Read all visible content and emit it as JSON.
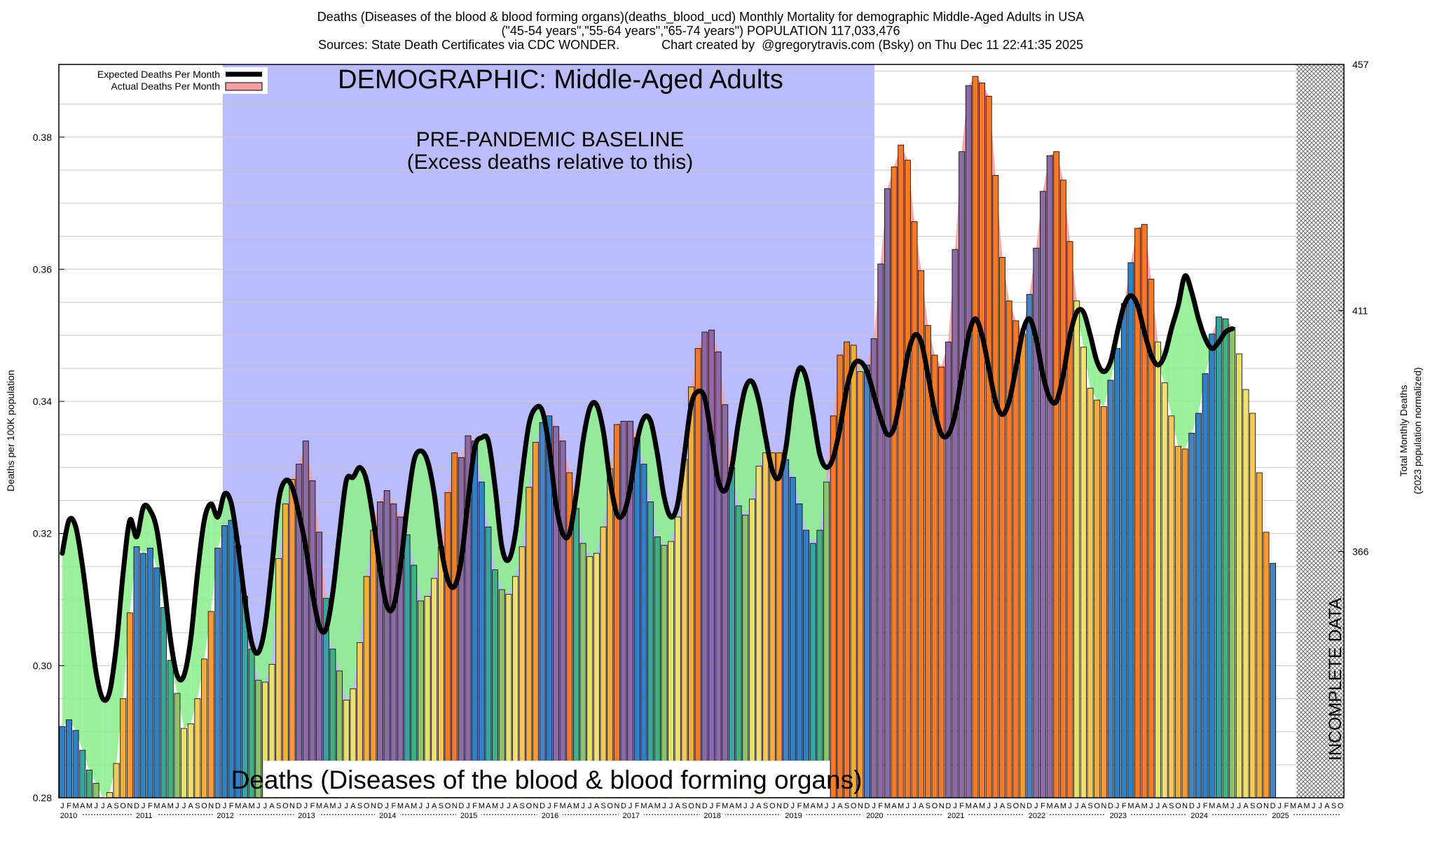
{
  "header": {
    "line1": "Deaths (Diseases of the blood & blood forming organs)(deaths_blood_ucd) Monthly Mortality for demographic Middle-Aged Adults in USA",
    "line2": "(\"45-54 years\",\"55-64 years\",\"65-74 years\") POPULATION 117,033,476",
    "line3": "Sources: State Death Certificates via CDC WONDER.            Chart created by  @gregorytravis.com (Bsky) on Thu Dec 11 22:41:35 2025"
  },
  "legend": {
    "expected": "Expected Deaths Per Month",
    "actual": "Actual Deaths Per Month"
  },
  "annotations": {
    "demographic": "DEMOGRAPHIC: Middle-Aged Adults",
    "baseline_line1": "PRE-PANDEMIC BASELINE",
    "baseline_line2": "(Excess deaths relative to this)",
    "bottom_label": "Deaths (Diseases of the blood & blood forming organs)",
    "incomplete": "INCOMPLETE DATA"
  },
  "colors": {
    "baseline_region": "#bbbbff",
    "expected_line": "#000000",
    "excess_fill": "#f4a0a0",
    "deficit_fill": "#90ee90",
    "incomplete_hatch": "#555555"
  },
  "chart_data": {
    "type": "bar",
    "ylabel": "Deaths per 100K population",
    "y2label_line1": "Total Monthly Deaths",
    "y2label_line2": "(2023 population normalized)",
    "ylim": [
      0.28,
      0.391
    ],
    "y2lim": [
      320,
      457
    ],
    "yticks": [
      "0.28",
      "0.30",
      "0.32",
      "0.34",
      "0.36",
      "0.38"
    ],
    "y2ticks": [
      "366",
      "411",
      "457"
    ],
    "grid": true,
    "legend_position": "top-left",
    "baseline_period": [
      "2012-01",
      "2019-12"
    ],
    "incomplete_from": "2025-04",
    "month_letters": [
      "J",
      "F",
      "M",
      "A",
      "M",
      "J",
      "J",
      "A",
      "S",
      "O",
      "N",
      "D"
    ],
    "years": [
      "2010",
      "2011",
      "2012",
      "2013",
      "2014",
      "2015",
      "2016",
      "2017",
      "2018",
      "2019",
      "2020",
      "2021",
      "2022",
      "2023",
      "2024",
      "2025"
    ],
    "series": [
      {
        "name": "Actual Deaths Per Month",
        "start": "2010-01",
        "values": [
          0.2908,
          0.2918,
          0.2902,
          0.2872,
          0.2842,
          0.2822,
          0.28,
          0.2808,
          0.2852,
          0.295,
          0.308,
          0.318,
          0.317,
          0.3178,
          0.3148,
          0.3088,
          0.3008,
          0.2958,
          0.2905,
          0.2912,
          0.295,
          0.301,
          0.3082,
          0.3178,
          0.3212,
          0.322,
          0.3182,
          0.3105,
          0.3025,
          0.2978,
          0.2975,
          0.3002,
          0.3162,
          0.3245,
          0.3282,
          0.3305,
          0.334,
          0.328,
          0.3202,
          0.3102,
          0.3025,
          0.2992,
          0.2948,
          0.2965,
          0.3035,
          0.3135,
          0.3205,
          0.3248,
          0.3265,
          0.3245,
          0.3225,
          0.3198,
          0.3152,
          0.3098,
          0.3105,
          0.3132,
          0.318,
          0.3262,
          0.3322,
          0.3315,
          0.3348,
          0.334,
          0.3278,
          0.321,
          0.3145,
          0.3115,
          0.3108,
          0.3135,
          0.318,
          0.327,
          0.3338,
          0.3368,
          0.3378,
          0.3362,
          0.334,
          0.3292,
          0.3238,
          0.3185,
          0.3165,
          0.317,
          0.321,
          0.3298,
          0.3365,
          0.337,
          0.337,
          0.3345,
          0.3305,
          0.3248,
          0.3195,
          0.3182,
          0.3188,
          0.3225,
          0.3312,
          0.3422,
          0.348,
          0.3505,
          0.3508,
          0.3475,
          0.3395,
          0.33,
          0.3242,
          0.3228,
          0.3252,
          0.3302,
          0.3322,
          0.3322,
          0.3322,
          0.3312,
          0.3285,
          0.3245,
          0.3205,
          0.3185,
          0.3205,
          0.3278,
          0.3378,
          0.347,
          0.349,
          0.3485,
          0.3445,
          0.3455,
          0.3495,
          0.3608,
          0.3722,
          0.3755,
          0.3788,
          0.3765,
          0.3672,
          0.3598,
          0.3515,
          0.347,
          0.3452,
          0.349,
          0.363,
          0.3778,
          0.3878,
          0.3892,
          0.3882,
          0.3862,
          0.3742,
          0.3618,
          0.3552,
          0.3522,
          0.3502,
          0.3562,
          0.3632,
          0.3718,
          0.3772,
          0.3778,
          0.3735,
          0.3642,
          0.3552,
          0.3482,
          0.342,
          0.3402,
          0.3392,
          0.3432,
          0.348,
          0.3548,
          0.361,
          0.3662,
          0.3668,
          0.3585,
          0.349,
          0.3428,
          0.3378,
          0.3332,
          0.3328,
          0.3352,
          0.3382,
          0.3442,
          0.3502,
          0.3528,
          0.3525,
          0.3512,
          0.3472,
          0.3418,
          0.3382,
          0.3292,
          0.3202,
          0.3155
        ]
      },
      {
        "name": "Expected Deaths Per Month",
        "start": "2010-01",
        "values": [
          0.317,
          0.322,
          0.321,
          0.315,
          0.307,
          0.299,
          0.295,
          0.296,
          0.303,
          0.314,
          0.322,
          0.3195,
          0.324,
          0.3235,
          0.3205,
          0.313,
          0.304,
          0.2985,
          0.2985,
          0.304,
          0.314,
          0.322,
          0.3245,
          0.3225,
          0.326,
          0.3245,
          0.318,
          0.31,
          0.3035,
          0.302,
          0.306,
          0.315,
          0.325,
          0.328,
          0.327,
          0.323,
          0.318,
          0.311,
          0.306,
          0.3055,
          0.311,
          0.32,
          0.328,
          0.3285,
          0.33,
          0.328,
          0.322,
          0.3145,
          0.309,
          0.309,
          0.315,
          0.324,
          0.331,
          0.3325,
          0.331,
          0.326,
          0.318,
          0.313,
          0.312,
          0.316,
          0.325,
          0.333,
          0.3345,
          0.334,
          0.327,
          0.318,
          0.316,
          0.32,
          0.329,
          0.3365,
          0.339,
          0.3385,
          0.333,
          0.3245,
          0.32,
          0.32,
          0.326,
          0.334,
          0.339,
          0.3395,
          0.3355,
          0.328,
          0.323,
          0.323,
          0.327,
          0.334,
          0.3375,
          0.337,
          0.332,
          0.3255,
          0.3225,
          0.3245,
          0.332,
          0.3395,
          0.3415,
          0.3405,
          0.3345,
          0.328,
          0.3265,
          0.33,
          0.337,
          0.342,
          0.343,
          0.34,
          0.3345,
          0.3295,
          0.3285,
          0.333,
          0.341,
          0.345,
          0.3435,
          0.338,
          0.332,
          0.33,
          0.3315,
          0.336,
          0.342,
          0.3455,
          0.346,
          0.3445,
          0.341,
          0.3375,
          0.335,
          0.336,
          0.341,
          0.347,
          0.35,
          0.349,
          0.344,
          0.3385,
          0.335,
          0.335,
          0.338,
          0.344,
          0.35,
          0.3525,
          0.35,
          0.345,
          0.34,
          0.338,
          0.34,
          0.345,
          0.3505,
          0.3525,
          0.3495,
          0.344,
          0.3405,
          0.34,
          0.344,
          0.35,
          0.3535,
          0.3535,
          0.35,
          0.346,
          0.3445,
          0.346,
          0.3505,
          0.3545,
          0.356,
          0.3545,
          0.3505,
          0.347,
          0.3455,
          0.347,
          0.351,
          0.3545,
          0.359,
          0.3565,
          0.3525,
          0.3495,
          0.348,
          0.349,
          0.3505,
          0.351
        ]
      }
    ]
  }
}
